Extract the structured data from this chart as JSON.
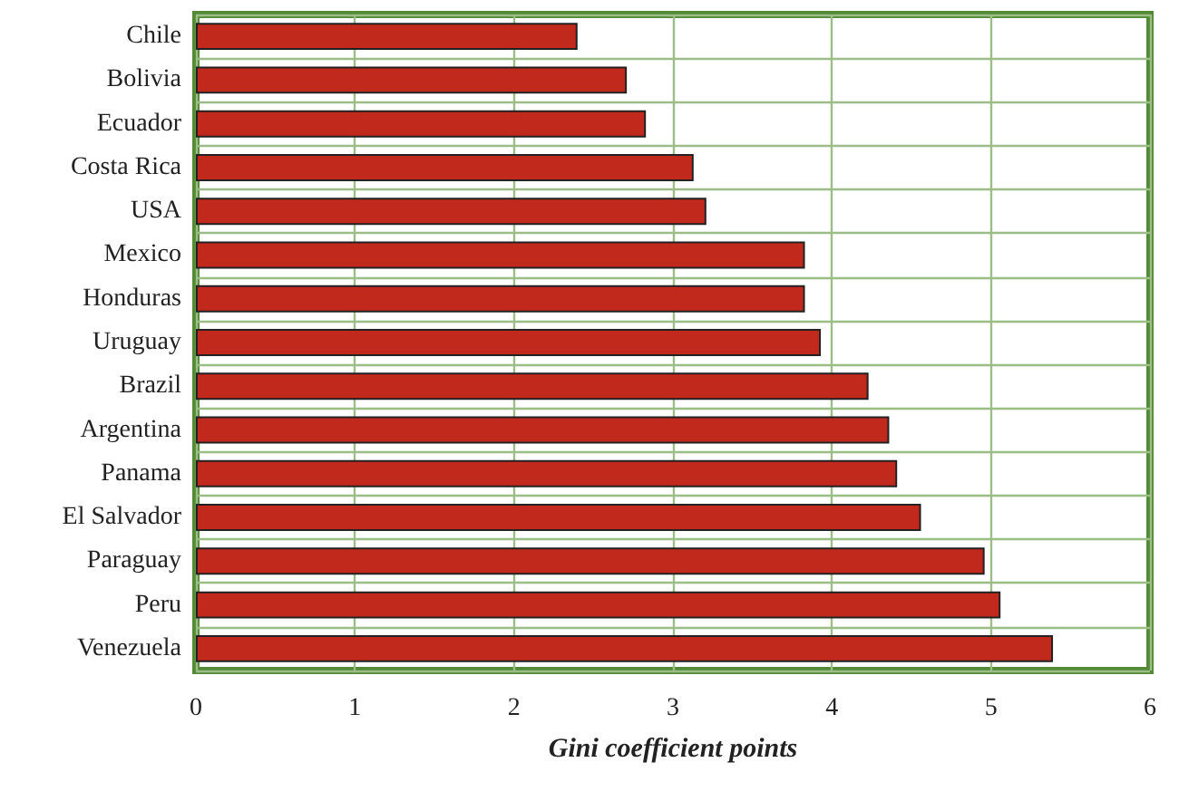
{
  "chart_data": {
    "type": "bar",
    "orientation": "horizontal",
    "xlabel": "Gini coefficient points",
    "categories": [
      "Chile",
      "Bolivia",
      "Ecuador",
      "Costa Rica",
      "USA",
      "Mexico",
      "Honduras",
      "Uruguay",
      "Brazil",
      "Argentina",
      "Panama",
      "El Salvador",
      "Paraguay",
      "Peru",
      "Venezuela"
    ],
    "values": [
      2.4,
      2.71,
      2.83,
      3.13,
      3.21,
      3.83,
      3.83,
      3.93,
      4.23,
      4.36,
      4.41,
      4.56,
      4.96,
      5.06,
      5.39
    ],
    "color": "#c0291b",
    "xlim": [
      0,
      6
    ],
    "xticks": [
      0,
      1,
      2,
      3,
      4,
      5,
      6
    ],
    "grid": true
  }
}
